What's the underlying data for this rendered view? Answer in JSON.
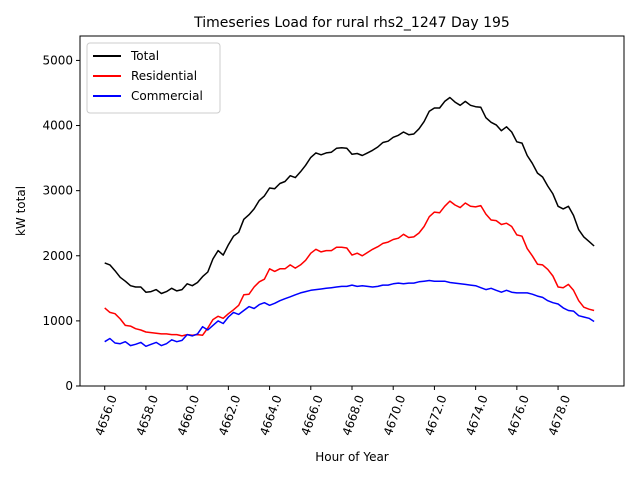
{
  "chart_data": {
    "type": "line",
    "title": "Timeseries Load for rural rhs2_1247  Day 195",
    "xlabel": "Hour of Year",
    "ylabel": "kW total",
    "xlim": [
      4654.8,
      4681.2
    ],
    "ylim": [
      0,
      5375
    ],
    "xticks": [
      4656,
      4658,
      4660,
      4662,
      4664,
      4666,
      4668,
      4670,
      4672,
      4674,
      4676,
      4678
    ],
    "xtick_labels": [
      "4656.0",
      "4658.0",
      "4660.0",
      "4662.0",
      "4664.0",
      "4666.0",
      "4668.0",
      "4670.0",
      "4672.0",
      "4674.0",
      "4676.0",
      "4678.0"
    ],
    "yticks": [
      0,
      1000,
      2000,
      3000,
      4000,
      5000
    ],
    "ytick_labels": [
      "0",
      "1000",
      "2000",
      "3000",
      "4000",
      "5000"
    ],
    "legend_position": "top-left",
    "x_start": 4656,
    "x_step": 0.25,
    "series": [
      {
        "name": "Total",
        "color": "#000000",
        "values": [
          1890,
          1860,
          1770,
          1670,
          1610,
          1540,
          1520,
          1520,
          1440,
          1450,
          1480,
          1420,
          1450,
          1500,
          1460,
          1480,
          1570,
          1540,
          1590,
          1680,
          1750,
          1950,
          2080,
          2010,
          2170,
          2300,
          2360,
          2560,
          2630,
          2720,
          2850,
          2920,
          3040,
          3030,
          3110,
          3140,
          3230,
          3200,
          3290,
          3390,
          3510,
          3580,
          3550,
          3580,
          3590,
          3650,
          3660,
          3650,
          3560,
          3570,
          3540,
          3580,
          3620,
          3670,
          3740,
          3760,
          3820,
          3850,
          3900,
          3860,
          3870,
          3950,
          4060,
          4220,
          4270,
          4270,
          4370,
          4430,
          4360,
          4310,
          4370,
          4310,
          4290,
          4280,
          4120,
          4050,
          4010,
          3920,
          3980,
          3900,
          3750,
          3730,
          3540,
          3420,
          3270,
          3210,
          3070,
          2950,
          2760,
          2720,
          2760,
          2620,
          2400,
          2290,
          2220,
          2150
        ]
      },
      {
        "name": "Residential",
        "color": "#ff0000",
        "values": [
          1200,
          1130,
          1110,
          1030,
          930,
          920,
          880,
          860,
          830,
          820,
          810,
          800,
          800,
          790,
          790,
          770,
          790,
          780,
          790,
          780,
          890,
          1020,
          1070,
          1040,
          1110,
          1170,
          1240,
          1400,
          1410,
          1520,
          1600,
          1640,
          1800,
          1760,
          1800,
          1800,
          1860,
          1810,
          1860,
          1930,
          2040,
          2100,
          2060,
          2080,
          2080,
          2130,
          2130,
          2120,
          2010,
          2040,
          2000,
          2050,
          2100,
          2140,
          2190,
          2210,
          2250,
          2270,
          2330,
          2280,
          2290,
          2350,
          2450,
          2600,
          2670,
          2660,
          2760,
          2840,
          2780,
          2740,
          2810,
          2760,
          2750,
          2770,
          2640,
          2550,
          2540,
          2480,
          2500,
          2450,
          2320,
          2300,
          2110,
          2000,
          1870,
          1860,
          1790,
          1690,
          1520,
          1510,
          1560,
          1470,
          1310,
          1210,
          1180,
          1160
        ]
      },
      {
        "name": "Commercial",
        "color": "#0000ff",
        "values": [
          680,
          730,
          660,
          650,
          680,
          620,
          640,
          670,
          610,
          640,
          670,
          620,
          650,
          710,
          680,
          700,
          790,
          770,
          800,
          910,
          860,
          930,
          1000,
          960,
          1060,
          1130,
          1100,
          1160,
          1220,
          1190,
          1250,
          1280,
          1240,
          1270,
          1310,
          1340,
          1370,
          1400,
          1430,
          1450,
          1470,
          1480,
          1490,
          1500,
          1510,
          1520,
          1530,
          1530,
          1550,
          1530,
          1540,
          1530,
          1520,
          1530,
          1550,
          1550,
          1570,
          1580,
          1570,
          1580,
          1580,
          1600,
          1610,
          1620,
          1610,
          1610,
          1610,
          1590,
          1580,
          1570,
          1560,
          1550,
          1540,
          1510,
          1480,
          1500,
          1470,
          1440,
          1470,
          1440,
          1430,
          1430,
          1430,
          1410,
          1380,
          1360,
          1310,
          1280,
          1260,
          1200,
          1160,
          1150,
          1080,
          1060,
          1040,
          990
        ]
      }
    ]
  }
}
